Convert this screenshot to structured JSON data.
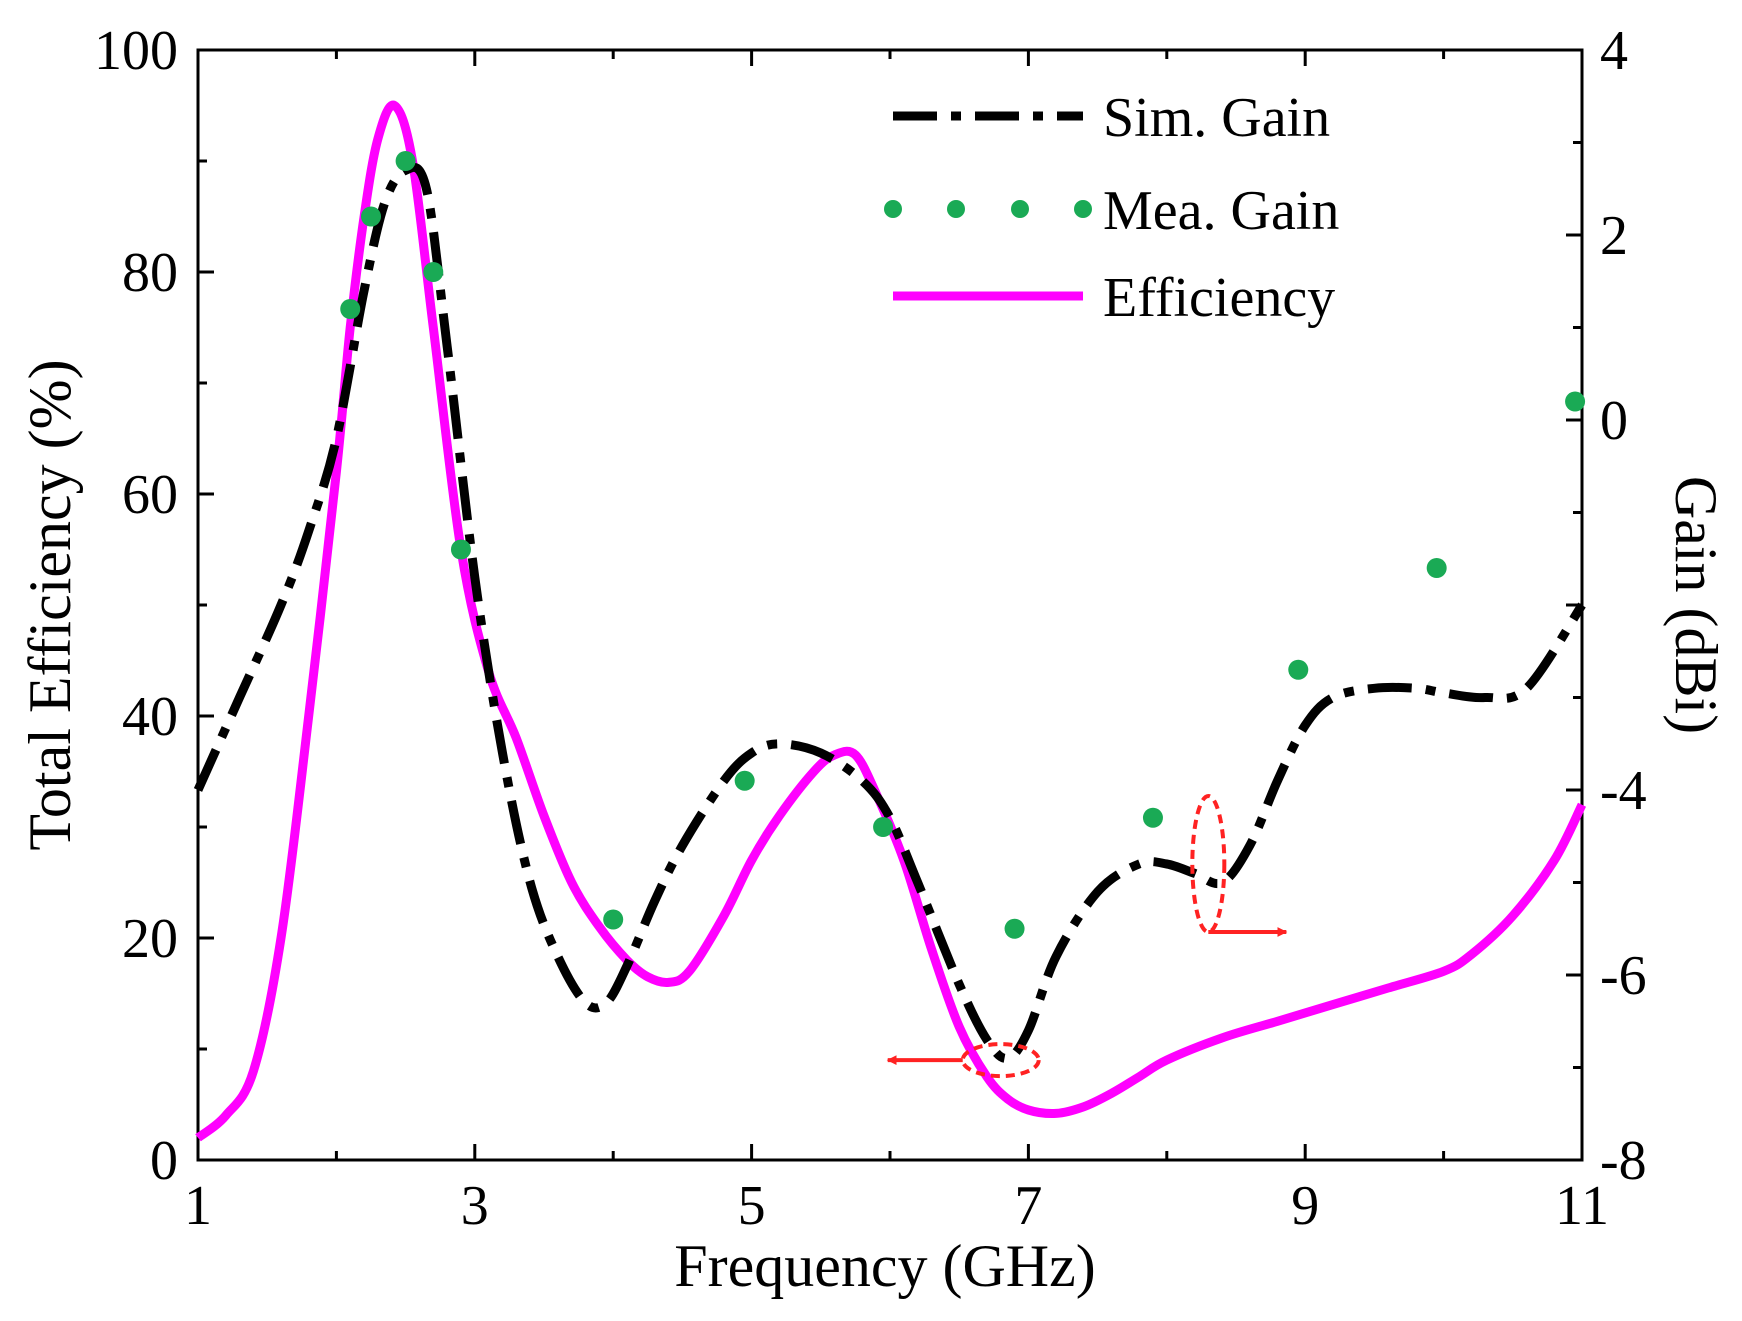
{
  "chart_data": {
    "type": "line",
    "xlabel": "Frequency (GHz)",
    "ylabel_left": "Total Efficiency (%)",
    "ylabel_right": "Gain (dBi)",
    "xlim": [
      1,
      11
    ],
    "ylim_left": [
      0,
      100
    ],
    "ylim_right": [
      -8,
      4
    ],
    "x_ticks": [
      "1",
      "3",
      "5",
      "7",
      "9",
      "11"
    ],
    "y_left_ticks": [
      "0",
      "20",
      "40",
      "60",
      "80",
      "100"
    ],
    "y_right_ticks": [
      "-8",
      "-6",
      "-4",
      "0",
      "2",
      "4"
    ],
    "legend": [
      "Sim. Gain",
      "Mea. Gain",
      "Efficiency"
    ],
    "legend_position": "top-right",
    "colors": {
      "sim_gain": "#000000",
      "mea_gain": "#1aaa55",
      "efficiency": "#ff00ff",
      "annotation": "#ff2222"
    },
    "series": [
      {
        "name": "Sim. Gain",
        "axis": "right",
        "style": "dash-dot",
        "x": [
          1.0,
          1.3,
          1.6,
          1.8,
          2.0,
          2.2,
          2.35,
          2.5,
          2.65,
          2.8,
          3.0,
          3.2,
          3.4,
          3.6,
          3.8,
          3.95,
          4.1,
          4.3,
          4.5,
          4.8,
          5.0,
          5.2,
          5.5,
          5.8,
          6.0,
          6.2,
          6.5,
          6.7,
          6.85,
          7.0,
          7.2,
          7.5,
          7.8,
          8.0,
          8.2,
          8.4,
          8.6,
          8.8,
          9.0,
          9.2,
          9.5,
          9.8,
          10.0,
          10.3,
          10.6,
          11.0
        ],
        "y": [
          -4.0,
          -3.0,
          -2.0,
          -1.2,
          -0.2,
          1.4,
          2.35,
          2.7,
          2.5,
          0.8,
          -1.7,
          -3.6,
          -5.0,
          -5.8,
          -6.3,
          -6.3,
          -5.9,
          -5.2,
          -4.6,
          -3.9,
          -3.6,
          -3.5,
          -3.6,
          -3.9,
          -4.3,
          -5.0,
          -6.1,
          -6.7,
          -6.9,
          -6.6,
          -5.8,
          -5.1,
          -4.8,
          -4.8,
          -4.9,
          -5.0,
          -4.6,
          -3.9,
          -3.3,
          -3.0,
          -2.9,
          -2.9,
          -2.95,
          -3.0,
          -2.9,
          -2.0
        ]
      },
      {
        "name": "Mea. Gain",
        "axis": "right",
        "style": "dots",
        "x": [
          2.1,
          2.25,
          2.5,
          2.7,
          2.9,
          4.0,
          4.95,
          5.95,
          6.9,
          7.9,
          8.95,
          9.95,
          10.95
        ],
        "y": [
          1.2,
          2.2,
          2.8,
          1.6,
          -1.4,
          -5.4,
          -3.9,
          -4.4,
          -5.5,
          -4.3,
          -2.7,
          -1.6,
          0.2
        ]
      },
      {
        "name": "Efficiency",
        "axis": "left",
        "style": "solid",
        "x": [
          1.0,
          1.2,
          1.4,
          1.6,
          1.8,
          2.0,
          2.1,
          2.2,
          2.3,
          2.42,
          2.55,
          2.7,
          2.9,
          3.1,
          3.3,
          3.5,
          3.7,
          3.9,
          4.1,
          4.25,
          4.4,
          4.55,
          4.8,
          5.0,
          5.2,
          5.45,
          5.6,
          5.75,
          5.9,
          6.1,
          6.3,
          6.5,
          6.7,
          6.85,
          7.0,
          7.2,
          7.4,
          7.6,
          7.8,
          8.0,
          8.4,
          8.8,
          9.2,
          9.6,
          10.0,
          10.2,
          10.5,
          10.8,
          11.0
        ],
        "y": [
          2,
          4,
          8,
          20,
          40,
          62,
          75,
          85,
          92,
          95,
          90,
          75,
          55,
          44,
          38,
          31,
          25,
          21,
          18,
          16.5,
          16,
          17,
          22,
          27,
          31,
          35,
          36.5,
          36.5,
          33,
          27,
          19,
          12,
          7.5,
          5.5,
          4.5,
          4.2,
          4.8,
          6,
          7.5,
          9,
          11,
          12.5,
          14,
          15.5,
          17,
          18.5,
          22,
          27,
          32
        ]
      }
    ],
    "annotations": [
      {
        "target": "Efficiency",
        "direction": "left",
        "at_x": 6.8,
        "at_y": 9
      },
      {
        "target": "Sim. Gain",
        "direction": "right",
        "at_x": 8.3,
        "at_y": -4.8
      }
    ]
  }
}
